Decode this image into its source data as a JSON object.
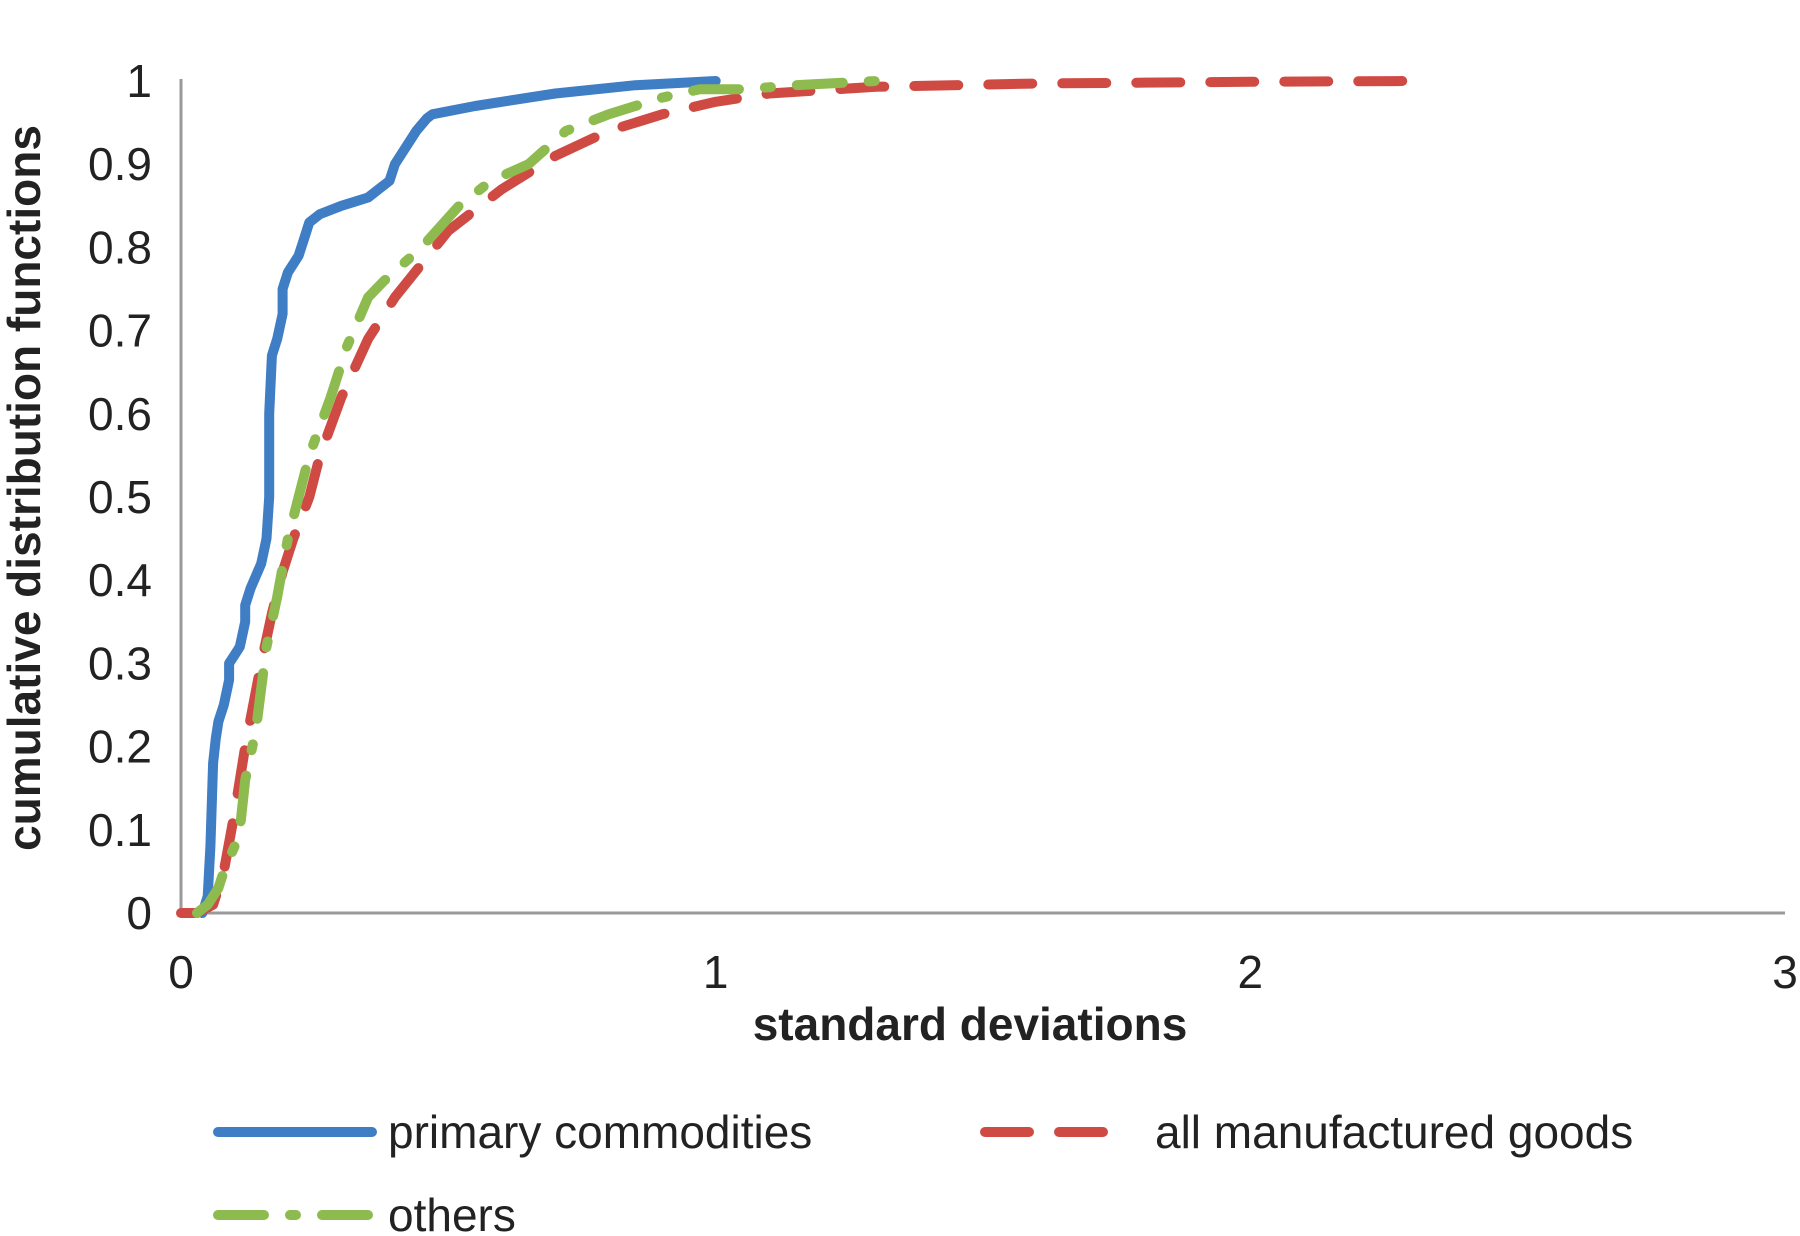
{
  "chart_data": {
    "type": "line",
    "title": "",
    "xlabel": "standard deviations",
    "ylabel": "cumulative distribution functions",
    "xlim": [
      0,
      3
    ],
    "ylim": [
      0,
      1
    ],
    "x_ticks": [
      "0",
      "1",
      "2",
      "3"
    ],
    "y_ticks": [
      "0",
      "0.1",
      "0.2",
      "0.3",
      "0.4",
      "0.5",
      "0.6",
      "0.7",
      "0.8",
      "0.9",
      "1"
    ],
    "grid": false,
    "legend_position": "bottom",
    "series": [
      {
        "name": "primary commodities",
        "color": "#3f7dc4",
        "style": "solid",
        "points": [
          [
            0.04,
            0.0
          ],
          [
            0.05,
            0.02
          ],
          [
            0.055,
            0.08
          ],
          [
            0.06,
            0.18
          ],
          [
            0.065,
            0.21
          ],
          [
            0.07,
            0.23
          ],
          [
            0.08,
            0.25
          ],
          [
            0.09,
            0.28
          ],
          [
            0.09,
            0.3
          ],
          [
            0.1,
            0.31
          ],
          [
            0.11,
            0.32
          ],
          [
            0.12,
            0.35
          ],
          [
            0.12,
            0.37
          ],
          [
            0.13,
            0.39
          ],
          [
            0.15,
            0.42
          ],
          [
            0.16,
            0.45
          ],
          [
            0.165,
            0.5
          ],
          [
            0.165,
            0.6
          ],
          [
            0.17,
            0.67
          ],
          [
            0.18,
            0.69
          ],
          [
            0.19,
            0.72
          ],
          [
            0.19,
            0.75
          ],
          [
            0.2,
            0.77
          ],
          [
            0.22,
            0.79
          ],
          [
            0.23,
            0.81
          ],
          [
            0.24,
            0.83
          ],
          [
            0.26,
            0.84
          ],
          [
            0.3,
            0.85
          ],
          [
            0.35,
            0.86
          ],
          [
            0.39,
            0.88
          ],
          [
            0.4,
            0.9
          ],
          [
            0.42,
            0.92
          ],
          [
            0.44,
            0.94
          ],
          [
            0.46,
            0.955
          ],
          [
            0.47,
            0.96
          ],
          [
            0.55,
            0.97
          ],
          [
            0.7,
            0.985
          ],
          [
            0.85,
            0.995
          ],
          [
            1.0,
            1.0
          ]
        ]
      },
      {
        "name": "all manufactured goods",
        "color": "#d04a44",
        "style": "dashed",
        "points": [
          [
            0.0,
            0.0
          ],
          [
            0.03,
            0.0
          ],
          [
            0.06,
            0.01
          ],
          [
            0.08,
            0.05
          ],
          [
            0.1,
            0.12
          ],
          [
            0.12,
            0.2
          ],
          [
            0.15,
            0.3
          ],
          [
            0.17,
            0.36
          ],
          [
            0.19,
            0.41
          ],
          [
            0.21,
            0.45
          ],
          [
            0.24,
            0.5
          ],
          [
            0.26,
            0.55
          ],
          [
            0.3,
            0.62
          ],
          [
            0.35,
            0.69
          ],
          [
            0.4,
            0.74
          ],
          [
            0.45,
            0.78
          ],
          [
            0.5,
            0.82
          ],
          [
            0.6,
            0.87
          ],
          [
            0.7,
            0.91
          ],
          [
            0.8,
            0.94
          ],
          [
            0.9,
            0.96
          ],
          [
            1.0,
            0.975
          ],
          [
            1.1,
            0.985
          ],
          [
            1.3,
            0.993
          ],
          [
            1.6,
            0.997
          ],
          [
            2.0,
            0.999
          ],
          [
            2.3,
            1.0
          ]
        ]
      },
      {
        "name": "others",
        "color": "#8dbb4f",
        "style": "dashdot",
        "points": [
          [
            0.03,
            0.0
          ],
          [
            0.05,
            0.01
          ],
          [
            0.07,
            0.03
          ],
          [
            0.08,
            0.05
          ],
          [
            0.1,
            0.08
          ],
          [
            0.11,
            0.1
          ],
          [
            0.12,
            0.16
          ],
          [
            0.14,
            0.22
          ],
          [
            0.15,
            0.27
          ],
          [
            0.16,
            0.32
          ],
          [
            0.18,
            0.38
          ],
          [
            0.2,
            0.45
          ],
          [
            0.22,
            0.5
          ],
          [
            0.24,
            0.55
          ],
          [
            0.28,
            0.62
          ],
          [
            0.31,
            0.68
          ],
          [
            0.35,
            0.74
          ],
          [
            0.38,
            0.76
          ],
          [
            0.45,
            0.8
          ],
          [
            0.52,
            0.85
          ],
          [
            0.58,
            0.88
          ],
          [
            0.65,
            0.9
          ],
          [
            0.72,
            0.94
          ],
          [
            0.8,
            0.96
          ],
          [
            0.9,
            0.98
          ],
          [
            0.97,
            0.99
          ],
          [
            1.05,
            0.99
          ],
          [
            1.15,
            0.995
          ],
          [
            1.3,
            1.0
          ]
        ]
      }
    ]
  }
}
